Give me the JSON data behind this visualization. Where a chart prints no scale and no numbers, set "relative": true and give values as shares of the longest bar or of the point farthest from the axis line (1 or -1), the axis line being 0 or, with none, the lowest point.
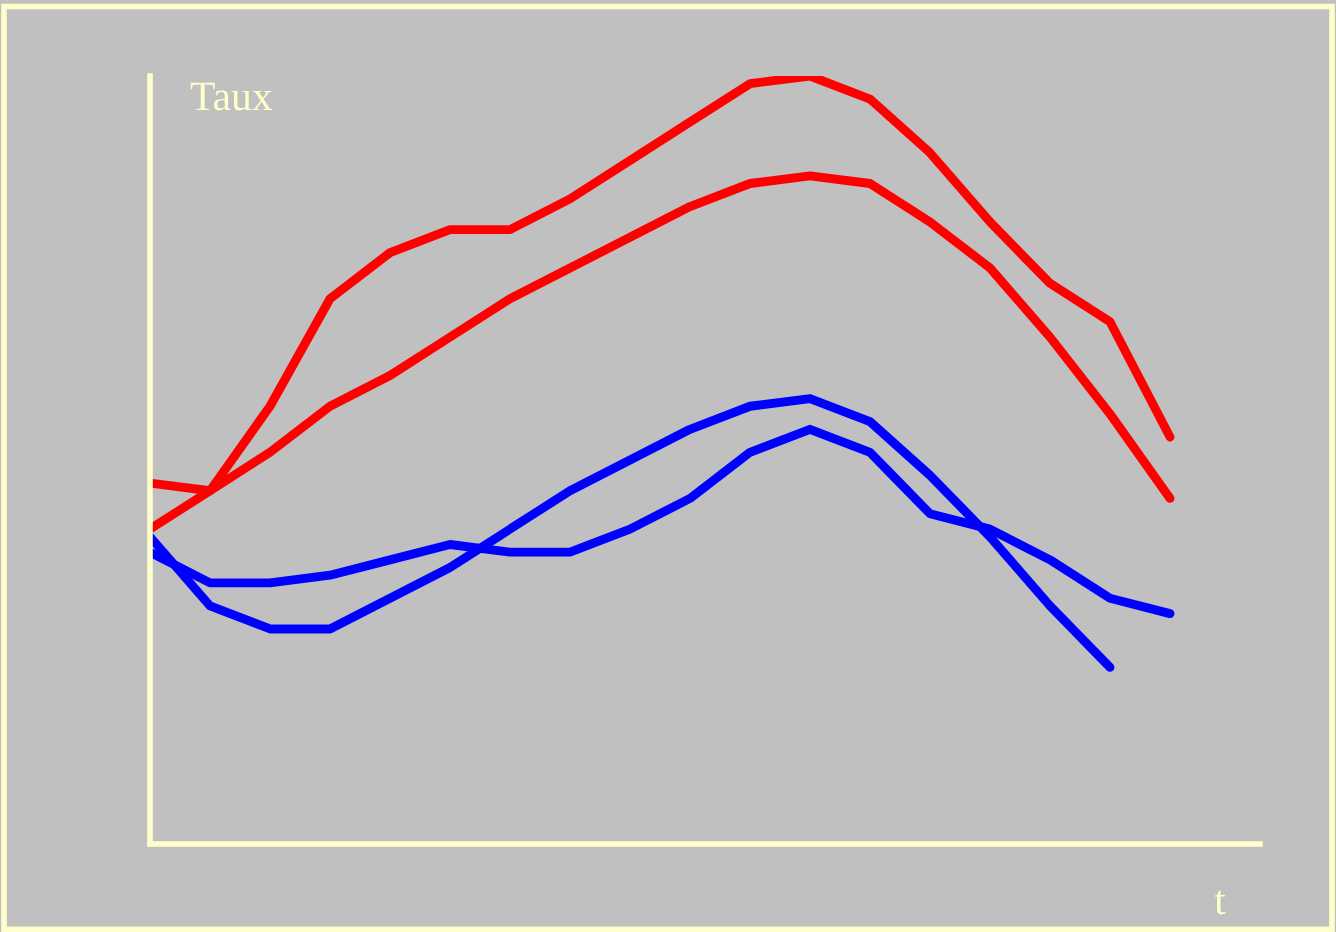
{
  "chart_data": {
    "type": "line",
    "relative": true,
    "xlabel": "t",
    "ylabel": "Taux",
    "grid": false,
    "marker": "none",
    "line_style": "solid",
    "categories": [
      null,
      null,
      null,
      null,
      null,
      null,
      null,
      null,
      null,
      null,
      null,
      null,
      null,
      null,
      null,
      null,
      null,
      null
    ],
    "series": [
      {
        "color": "#ff0000",
        "values": [
          0.41,
          0.46,
          0.51,
          0.57,
          0.61,
          0.66,
          0.71,
          0.75,
          0.79,
          0.83,
          0.86,
          0.87,
          0.86,
          0.81,
          0.75,
          0.66,
          0.56,
          0.45
        ]
      },
      {
        "color": "#ff0000",
        "values": [
          0.47,
          0.46,
          0.57,
          0.71,
          0.77,
          0.8,
          0.8,
          0.84,
          0.89,
          0.94,
          0.99,
          1,
          0.97,
          0.9,
          0.81,
          0.73,
          0.68,
          0.53
        ]
      },
      {
        "color": "#0000ff",
        "values": [
          0.4,
          0.31,
          0.28,
          0.28,
          0.32,
          0.36,
          0.41,
          0.46,
          0.5,
          0.54,
          0.57,
          0.58,
          0.55,
          0.48,
          0.4,
          0.31,
          0.23,
          null
        ]
      },
      {
        "color": "#0000ff",
        "values": [
          0.38,
          0.34,
          0.34,
          0.35,
          0.37,
          0.39,
          0.38,
          0.38,
          0.41,
          0.45,
          0.51,
          0.54,
          0.51,
          0.43,
          0.41,
          0.37,
          0.32,
          0.3
        ]
      }
    ]
  }
}
